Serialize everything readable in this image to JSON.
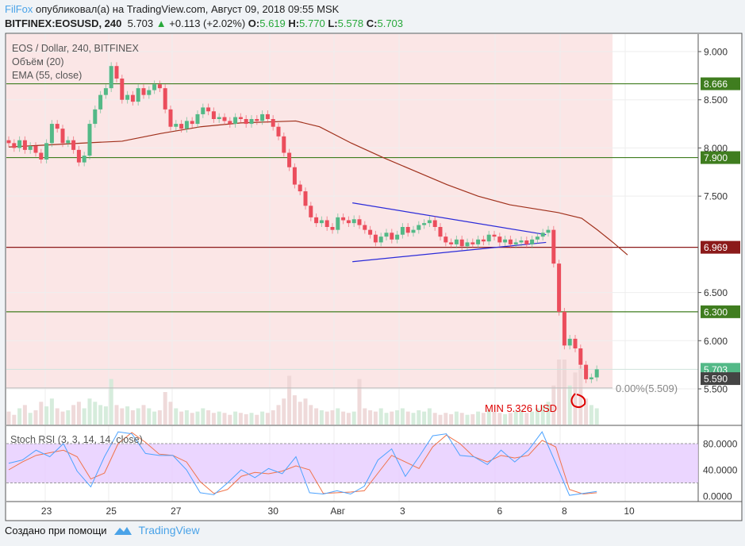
{
  "header": {
    "user": "FilFox",
    "published": "опубликовал(а) на TradingView.com, Август 09, 2018 09:55 MSK",
    "symbol": "BITFINEX:EOSUSD, 240",
    "last": "5.703",
    "change": "+0.113 (+2.02%)",
    "o_label": "O:",
    "o": "5.619",
    "h_label": "H:",
    "h": "5.770",
    "l_label": "L:",
    "l": "5.578",
    "c_label": "C:",
    "c": "5.703"
  },
  "legend": {
    "title": "EOS / Dollar, 240, BITFINEX",
    "volume": "Объём (20)",
    "ema": "EMA (55, close)",
    "stoch": "Stoch RSI (3, 3, 14, 14, close)"
  },
  "footer": {
    "created": "Создано при помощи",
    "brand": "TradingView"
  },
  "chart_data": {
    "type": "candlestick",
    "ylim": [
      5.2,
      9.15
    ],
    "price_ticks": [
      "9.000",
      "8.500",
      "8.000",
      "7.500",
      "6.500",
      "6.000",
      "5.500"
    ],
    "price_tick_values": [
      9,
      8.5,
      8,
      7.5,
      6.5,
      6,
      5.5
    ],
    "time_ticks": [
      {
        "label": "23",
        "index": 7
      },
      {
        "label": "25",
        "index": 19
      },
      {
        "label": "27",
        "index": 31
      },
      {
        "label": "30",
        "index": 49
      },
      {
        "label": "Авг",
        "index": 61
      },
      {
        "label": "3",
        "index": 73
      },
      {
        "label": "6",
        "index": 91
      },
      {
        "label": "8",
        "index": 103
      },
      {
        "label": "10",
        "index": 115
      }
    ],
    "first_open": 8.08,
    "closes": [
      8.05,
      8.0,
      8.08,
      7.98,
      8.02,
      7.95,
      7.88,
      8.05,
      8.25,
      8.2,
      8.05,
      8.08,
      7.98,
      7.85,
      7.92,
      8.25,
      8.4,
      8.55,
      8.62,
      8.85,
      8.72,
      8.5,
      8.55,
      8.48,
      8.62,
      8.55,
      8.6,
      8.66,
      8.62,
      8.4,
      8.22,
      8.25,
      8.2,
      8.28,
      8.25,
      8.35,
      8.42,
      8.38,
      8.3,
      8.32,
      8.28,
      8.25,
      8.32,
      8.3,
      8.25,
      8.3,
      8.28,
      8.35,
      8.3,
      8.22,
      8.12,
      7.95,
      7.8,
      7.62,
      7.55,
      7.4,
      7.28,
      7.22,
      7.25,
      7.18,
      7.15,
      7.28,
      7.25,
      7.22,
      7.26,
      7.2,
      7.15,
      7.1,
      7.02,
      7.08,
      7.12,
      7.05,
      7.1,
      7.18,
      7.12,
      7.15,
      7.2,
      7.22,
      7.25,
      7.18,
      7.08,
      7.02,
      7.0,
      7.05,
      6.98,
      7.02,
      7.0,
      7.05,
      7.03,
      7.1,
      7.08,
      7.02,
      7.05,
      7.0,
      7.02,
      7.04,
      7.0,
      7.05,
      7.08,
      7.12,
      7.15,
      6.8,
      6.3,
      5.95,
      6.02,
      5.92,
      5.75,
      5.6,
      5.619,
      5.703
    ],
    "volumes": [
      20,
      15,
      25,
      30,
      18,
      22,
      35,
      28,
      40,
      25,
      20,
      22,
      30,
      35,
      25,
      40,
      35,
      30,
      28,
      70,
      30,
      25,
      28,
      22,
      25,
      30,
      25,
      20,
      22,
      50,
      35,
      25,
      20,
      22,
      18,
      20,
      25,
      22,
      18,
      20,
      18,
      15,
      20,
      18,
      16,
      18,
      15,
      20,
      18,
      22,
      30,
      40,
      75,
      45,
      35,
      40,
      30,
      25,
      22,
      20,
      22,
      25,
      20,
      18,
      20,
      70,
      25,
      22,
      20,
      25,
      18,
      20,
      22,
      25,
      20,
      18,
      22,
      20,
      25,
      18,
      15,
      18,
      16,
      20,
      18,
      15,
      16,
      20,
      18,
      22,
      20,
      18,
      16,
      18,
      20,
      22,
      18,
      20,
      25,
      30,
      35,
      60,
      100,
      100,
      60,
      80,
      90,
      40,
      30,
      25
    ],
    "horizontal_levels": [
      {
        "value": 8.666,
        "label": "8.666",
        "color": "#3f7d1f"
      },
      {
        "value": 7.9,
        "label": "7.900",
        "color": "#3f7d1f"
      },
      {
        "value": 6.969,
        "label": "6.969",
        "color": "#8b1a1a"
      },
      {
        "value": 6.3,
        "label": "6.300",
        "color": "#3f7d1f"
      }
    ],
    "last_price": {
      "value": 5.703,
      "label": "5.703",
      "color": "#53b987"
    },
    "other_price": {
      "value": 5.59,
      "label": "5.590",
      "color": "#444444"
    },
    "fib_level": {
      "value": 5.509,
      "label": "0.00%(5.509)"
    },
    "ema": [
      [
        0,
        8.01
      ],
      [
        13.5,
        8.05
      ],
      [
        21,
        8.07
      ],
      [
        28.2,
        8.15
      ],
      [
        35.6,
        8.22
      ],
      [
        43,
        8.26
      ],
      [
        53.2,
        8.28
      ],
      [
        57.6,
        8.22
      ],
      [
        63.5,
        8.05
      ],
      [
        69.4,
        7.9
      ],
      [
        75.3,
        7.76
      ],
      [
        81.2,
        7.62
      ],
      [
        87,
        7.5
      ],
      [
        92.9,
        7.41
      ],
      [
        101.8,
        7.33
      ],
      [
        106.2,
        7.27
      ],
      [
        109.1,
        7.15
      ],
      [
        112,
        7.02
      ],
      [
        114.7,
        6.89
      ]
    ],
    "triangle": {
      "upper": [
        [
          63.7,
          7.43
        ],
        [
          99.6,
          7.1
        ]
      ],
      "lower": [
        [
          63.7,
          6.82
        ],
        [
          99.6,
          7.02
        ]
      ],
      "color": "#2b2bd9"
    },
    "annotation": {
      "text": "MIN 5.326 USD",
      "color": "#dd0000",
      "index": 106.5,
      "value": 5.38
    },
    "stoch": {
      "ylim": [
        -5,
        105
      ],
      "ticks": [
        "80.0000",
        "40.0000",
        "0.0000"
      ],
      "tick_values": [
        80,
        40,
        0
      ],
      "band": [
        20,
        80
      ],
      "k": [
        50,
        55,
        70,
        60,
        80,
        38,
        14,
        60,
        98,
        95,
        65,
        62,
        62,
        40,
        5,
        2,
        20,
        40,
        28,
        42,
        34,
        60,
        5,
        3,
        8,
        3,
        15,
        55,
        72,
        30,
        60,
        92,
        95,
        62,
        60,
        48,
        70,
        52,
        70,
        98,
        50,
        1,
        4,
        7
      ],
      "d": [
        40,
        52,
        62,
        66,
        70,
        60,
        26,
        35,
        80,
        97,
        82,
        64,
        62,
        52,
        22,
        4,
        10,
        30,
        36,
        34,
        38,
        46,
        40,
        4,
        5,
        6,
        8,
        35,
        62,
        52,
        42,
        75,
        93,
        80,
        60,
        52,
        62,
        58,
        62,
        85,
        75,
        10,
        3,
        5
      ],
      "k_color": "#4da3ff",
      "d_color": "#f0734a",
      "band_color": "#e6ccff"
    },
    "colors": {
      "up": "#53b987",
      "down": "#eb4d5c"
    }
  }
}
